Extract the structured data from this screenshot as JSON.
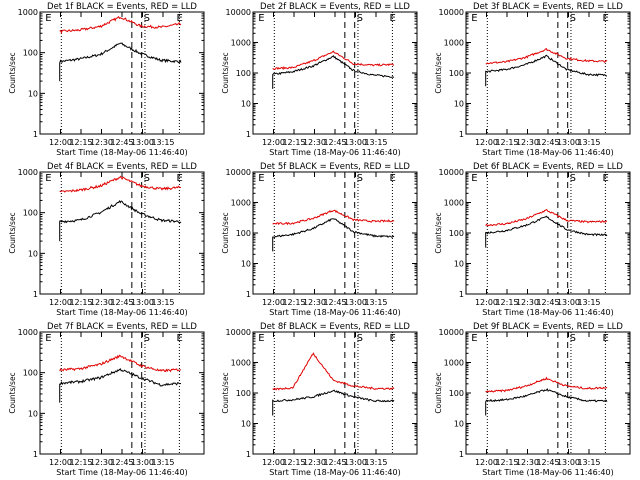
{
  "figure": {
    "x_ticks": [
      "12:00",
      "12:15",
      "12:30",
      "12:45",
      "13:00",
      "13:15"
    ],
    "y_ticks": [
      "1",
      "10",
      "100",
      "1000",
      "10000"
    ],
    "ylabel": "Counts/sec",
    "xlabel": "Start Time (18-May-06 11:46:40)",
    "colors": {
      "events": "#000000",
      "lld": "#e00000"
    },
    "markers": [
      "E",
      "S",
      "E"
    ]
  },
  "chart_data": [
    {
      "type": "line",
      "title": "Det 1f BLACK = Events, RED = LLD",
      "ymax": 1000,
      "ylim": [
        1,
        1000
      ],
      "x": [
        0,
        10,
        20,
        30,
        40,
        50,
        60
      ],
      "series": [
        {
          "name": "Events",
          "values": [
            60,
            70,
            90,
            170,
            95,
            65,
            60
          ]
        },
        {
          "name": "LLD",
          "values": [
            330,
            360,
            440,
            760,
            450,
            420,
            510
          ]
        }
      ]
    },
    {
      "type": "line",
      "title": "Det 2f BLACK = Events, RED = LLD",
      "ymax": 10000,
      "ylim": [
        1,
        10000
      ],
      "x": [
        0,
        10,
        20,
        30,
        40,
        50,
        60
      ],
      "series": [
        {
          "name": "Events",
          "values": [
            90,
            110,
            170,
            350,
            120,
            85,
            75
          ]
        },
        {
          "name": "LLD",
          "values": [
            140,
            150,
            250,
            500,
            200,
            180,
            190
          ]
        }
      ]
    },
    {
      "type": "line",
      "title": "Det 3f BLACK = Events, RED = LLD",
      "ymax": 10000,
      "ylim": [
        1,
        10000
      ],
      "x": [
        0,
        10,
        20,
        30,
        40,
        50,
        60
      ],
      "series": [
        {
          "name": "Events",
          "values": [
            110,
            130,
            190,
            360,
            130,
            90,
            85
          ]
        },
        {
          "name": "LLD",
          "values": [
            210,
            230,
            330,
            600,
            300,
            250,
            240
          ]
        }
      ]
    },
    {
      "type": "line",
      "title": "Det 4f BLACK = Events, RED = LLD",
      "ymax": 1000,
      "ylim": [
        1,
        1000
      ],
      "x": [
        0,
        10,
        20,
        30,
        40,
        50,
        60
      ],
      "series": [
        {
          "name": "Events",
          "values": [
            60,
            65,
            100,
            190,
            95,
            65,
            60
          ]
        },
        {
          "name": "LLD",
          "values": [
            320,
            360,
            450,
            750,
            460,
            380,
            420
          ]
        }
      ]
    },
    {
      "type": "line",
      "title": "Det 5f BLACK = Events, RED = LLD",
      "ymax": 10000,
      "ylim": [
        1,
        10000
      ],
      "x": [
        0,
        10,
        20,
        30,
        40,
        50,
        60
      ],
      "series": [
        {
          "name": "Events",
          "values": [
            75,
            90,
            140,
            300,
            110,
            80,
            75
          ]
        },
        {
          "name": "LLD",
          "values": [
            200,
            210,
            300,
            560,
            270,
            240,
            250
          ]
        }
      ]
    },
    {
      "type": "line",
      "title": "Det 6f BLACK = Events, RED = LLD",
      "ymax": 10000,
      "ylim": [
        1,
        10000
      ],
      "x": [
        0,
        10,
        20,
        30,
        40,
        50,
        60
      ],
      "series": [
        {
          "name": "Events",
          "values": [
            100,
            120,
            180,
            340,
            130,
            90,
            85
          ]
        },
        {
          "name": "LLD",
          "values": [
            180,
            200,
            290,
            560,
            260,
            230,
            240
          ]
        }
      ]
    },
    {
      "type": "line",
      "title": "Det 7f BLACK = Events, RED = LLD",
      "ymax": 1000,
      "ylim": [
        1,
        1000
      ],
      "x": [
        0,
        10,
        20,
        30,
        40,
        50,
        60
      ],
      "series": [
        {
          "name": "Events",
          "values": [
            55,
            60,
            75,
            120,
            75,
            50,
            55
          ]
        },
        {
          "name": "LLD",
          "values": [
            115,
            125,
            160,
            260,
            150,
            110,
            120
          ]
        }
      ]
    },
    {
      "type": "line",
      "title": "Det 8f BLACK = Events, RED = LLD",
      "ymax": 10000,
      "ylim": [
        1,
        10000
      ],
      "x": [
        0,
        10,
        20,
        30,
        40,
        50,
        60
      ],
      "series": [
        {
          "name": "Events",
          "values": [
            55,
            60,
            75,
            120,
            75,
            55,
            55
          ]
        },
        {
          "name": "LLD",
          "values": [
            130,
            150,
            2000,
            260,
            170,
            140,
            140
          ]
        }
      ]
    },
    {
      "type": "line",
      "title": "Det 9f BLACK = Events, RED = LLD",
      "ymax": 10000,
      "ylim": [
        1,
        10000
      ],
      "x": [
        0,
        10,
        20,
        30,
        40,
        50,
        60
      ],
      "series": [
        {
          "name": "Events",
          "values": [
            55,
            60,
            80,
            130,
            75,
            55,
            55
          ]
        },
        {
          "name": "LLD",
          "values": [
            110,
            120,
            170,
            300,
            170,
            140,
            150
          ]
        }
      ]
    }
  ]
}
